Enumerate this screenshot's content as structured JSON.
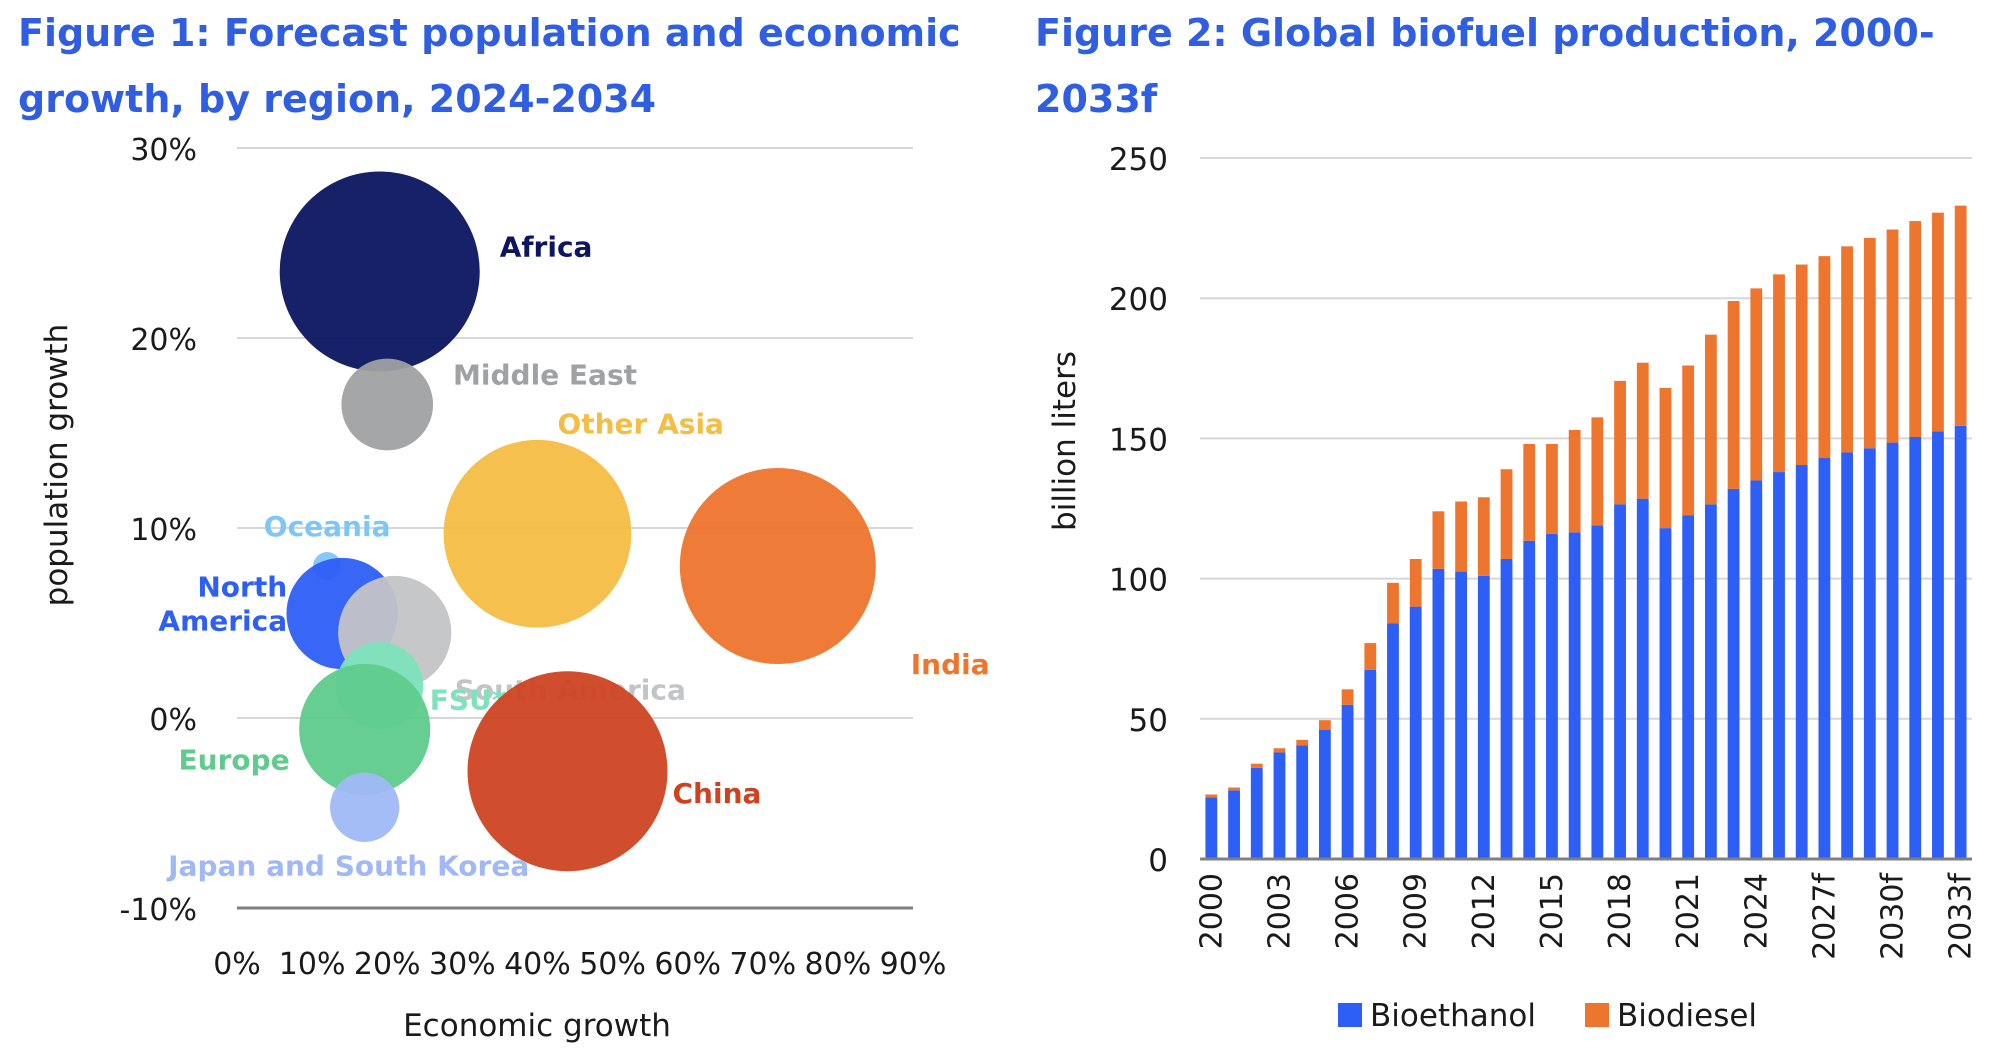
{
  "figure1": {
    "title": "Figure 1: Forecast population and economic growth, by region, 2024-2034",
    "chart_data": {
      "type": "bubble",
      "xlabel": "Economic growth",
      "ylabel": "population growth",
      "xlim": [
        0,
        0.9
      ],
      "ylim": [
        -0.1,
        0.3
      ],
      "x_ticks": [
        "0%",
        "10%",
        "20%",
        "30%",
        "40%",
        "50%",
        "60%",
        "70%",
        "80%",
        "90%"
      ],
      "y_ticks": [
        "30%",
        "20%",
        "10%",
        "0%",
        "-10%"
      ],
      "grid": "horizontal",
      "points": [
        {
          "name": "Africa",
          "x": 0.19,
          "y": 0.235,
          "size": 1.0,
          "color": "#0b1560"
        },
        {
          "name": "Middle East",
          "x": 0.2,
          "y": 0.165,
          "size": 0.21,
          "color": "#a0a1a3"
        },
        {
          "name": "Other Asia",
          "x": 0.4,
          "y": 0.097,
          "size": 0.88,
          "color": "#f4bd44"
        },
        {
          "name": "India",
          "x": 0.72,
          "y": 0.08,
          "size": 0.96,
          "color": "#ed752d"
        },
        {
          "name": "Oceania",
          "x": 0.12,
          "y": 0.08,
          "size": 0.01,
          "color": "#7ec6f5"
        },
        {
          "name": "North America",
          "x": 0.14,
          "y": 0.055,
          "size": 0.31,
          "color": "#2d5ef5"
        },
        {
          "name": "South America",
          "x": 0.21,
          "y": 0.045,
          "size": 0.32,
          "color": "#c3c4c6"
        },
        {
          "name": "FSU*",
          "x": 0.19,
          "y": 0.017,
          "size": 0.19,
          "color": "#7ee3bd"
        },
        {
          "name": "Europe",
          "x": 0.17,
          "y": -0.006,
          "size": 0.43,
          "color": "#5fcb8c"
        },
        {
          "name": "China",
          "x": 0.44,
          "y": -0.028,
          "size": 1.0,
          "color": "#cd4322"
        },
        {
          "name": "Japan and South Korea",
          "x": 0.17,
          "y": -0.047,
          "size": 0.12,
          "color": "#a0b9f6"
        }
      ]
    }
  },
  "figure2": {
    "title": "Figure 2: Global biofuel production, 2000-2033f",
    "chart_data": {
      "type": "bar",
      "stacked": true,
      "ylabel": "billion liters",
      "ylim": [
        0,
        250
      ],
      "y_ticks": [
        "0",
        "50",
        "100",
        "150",
        "200",
        "250"
      ],
      "grid": "horizontal",
      "legend": "bottom",
      "categories": [
        "2000",
        "2001",
        "2002",
        "2003",
        "2004",
        "2005",
        "2006",
        "2007",
        "2008",
        "2009",
        "2010",
        "2011",
        "2012",
        "2013",
        "2014",
        "2015",
        "2016",
        "2017",
        "2018",
        "2019",
        "2020",
        "2021",
        "2022",
        "2023",
        "2024",
        "2025",
        "2026",
        "2027f",
        "2028f",
        "2029f",
        "2030f",
        "2031f",
        "2032f",
        "2033f"
      ],
      "x_tick_labels": [
        "2000",
        "2003",
        "2006",
        "2009",
        "2012",
        "2015",
        "2018",
        "2021",
        "2024",
        "2027f",
        "2030f",
        "2033f"
      ],
      "series": [
        {
          "name": "Bioethanol",
          "color": "#2d5ef5",
          "values": [
            22,
            24.5,
            32.5,
            38,
            40.5,
            46,
            55,
            67.5,
            84,
            90,
            103.5,
            102.5,
            101,
            107,
            113.5,
            116,
            116.5,
            119,
            126.5,
            128.5,
            118,
            122.5,
            126.5,
            132,
            135,
            138,
            140.5,
            143,
            145,
            146.5,
            148.5,
            150.5,
            152.5,
            154.5
          ]
        },
        {
          "name": "Biodiesel",
          "color": "#ed752d",
          "values": [
            1,
            1,
            1.5,
            1.5,
            2,
            3.5,
            5.5,
            9.5,
            14.5,
            17,
            20.5,
            25,
            28,
            32,
            34.5,
            32,
            36.5,
            38.5,
            44,
            48.5,
            50,
            53.5,
            60.5,
            67,
            68.5,
            70.5,
            71.5,
            72,
            73.5,
            75,
            76,
            77,
            78,
            78.5
          ]
        }
      ]
    }
  }
}
